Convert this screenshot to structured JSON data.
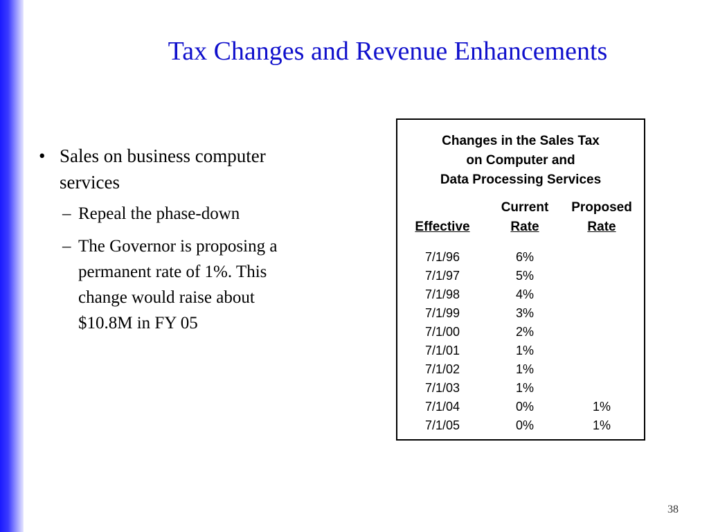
{
  "slide": {
    "title": "Tax Changes and Revenue Enhancements",
    "page_number": "38",
    "accent_color": "#1010cc",
    "sidebar_color": "#1a1aff"
  },
  "bullets": {
    "main": {
      "marker": "•",
      "line1": "Sales on business computer",
      "line2": "services"
    },
    "sub": [
      {
        "marker": "–",
        "lines": [
          "Repeal the  phase-down"
        ]
      },
      {
        "marker": "–",
        "lines": [
          "The Governor is proposing a",
          "permanent rate of 1%.  This",
          "change would raise about",
          "$10.8M in FY 05"
        ]
      }
    ]
  },
  "table": {
    "title_lines": [
      "Changes in the Sales Tax",
      "on Computer and",
      "Data Processing Services"
    ],
    "headers": {
      "effective": "Effective",
      "current_top": "Current",
      "current_bottom": "Rate",
      "proposed_top": "Proposed",
      "proposed_bottom": "Rate"
    },
    "rows": [
      {
        "effective": "7/1/96",
        "current": "6%",
        "proposed": ""
      },
      {
        "effective": "7/1/97",
        "current": "5%",
        "proposed": ""
      },
      {
        "effective": "7/1/98",
        "current": "4%",
        "proposed": ""
      },
      {
        "effective": "7/1/99",
        "current": "3%",
        "proposed": ""
      },
      {
        "effective": "7/1/00",
        "current": "2%",
        "proposed": ""
      },
      {
        "effective": "7/1/01",
        "current": "1%",
        "proposed": ""
      },
      {
        "effective": "7/1/02",
        "current": "1%",
        "proposed": ""
      },
      {
        "effective": "7/1/03",
        "current": "1%",
        "proposed": ""
      },
      {
        "effective": "7/1/04",
        "current": "0%",
        "proposed": "1%"
      },
      {
        "effective": "7/1/05",
        "current": "0%",
        "proposed": "1%"
      }
    ]
  }
}
